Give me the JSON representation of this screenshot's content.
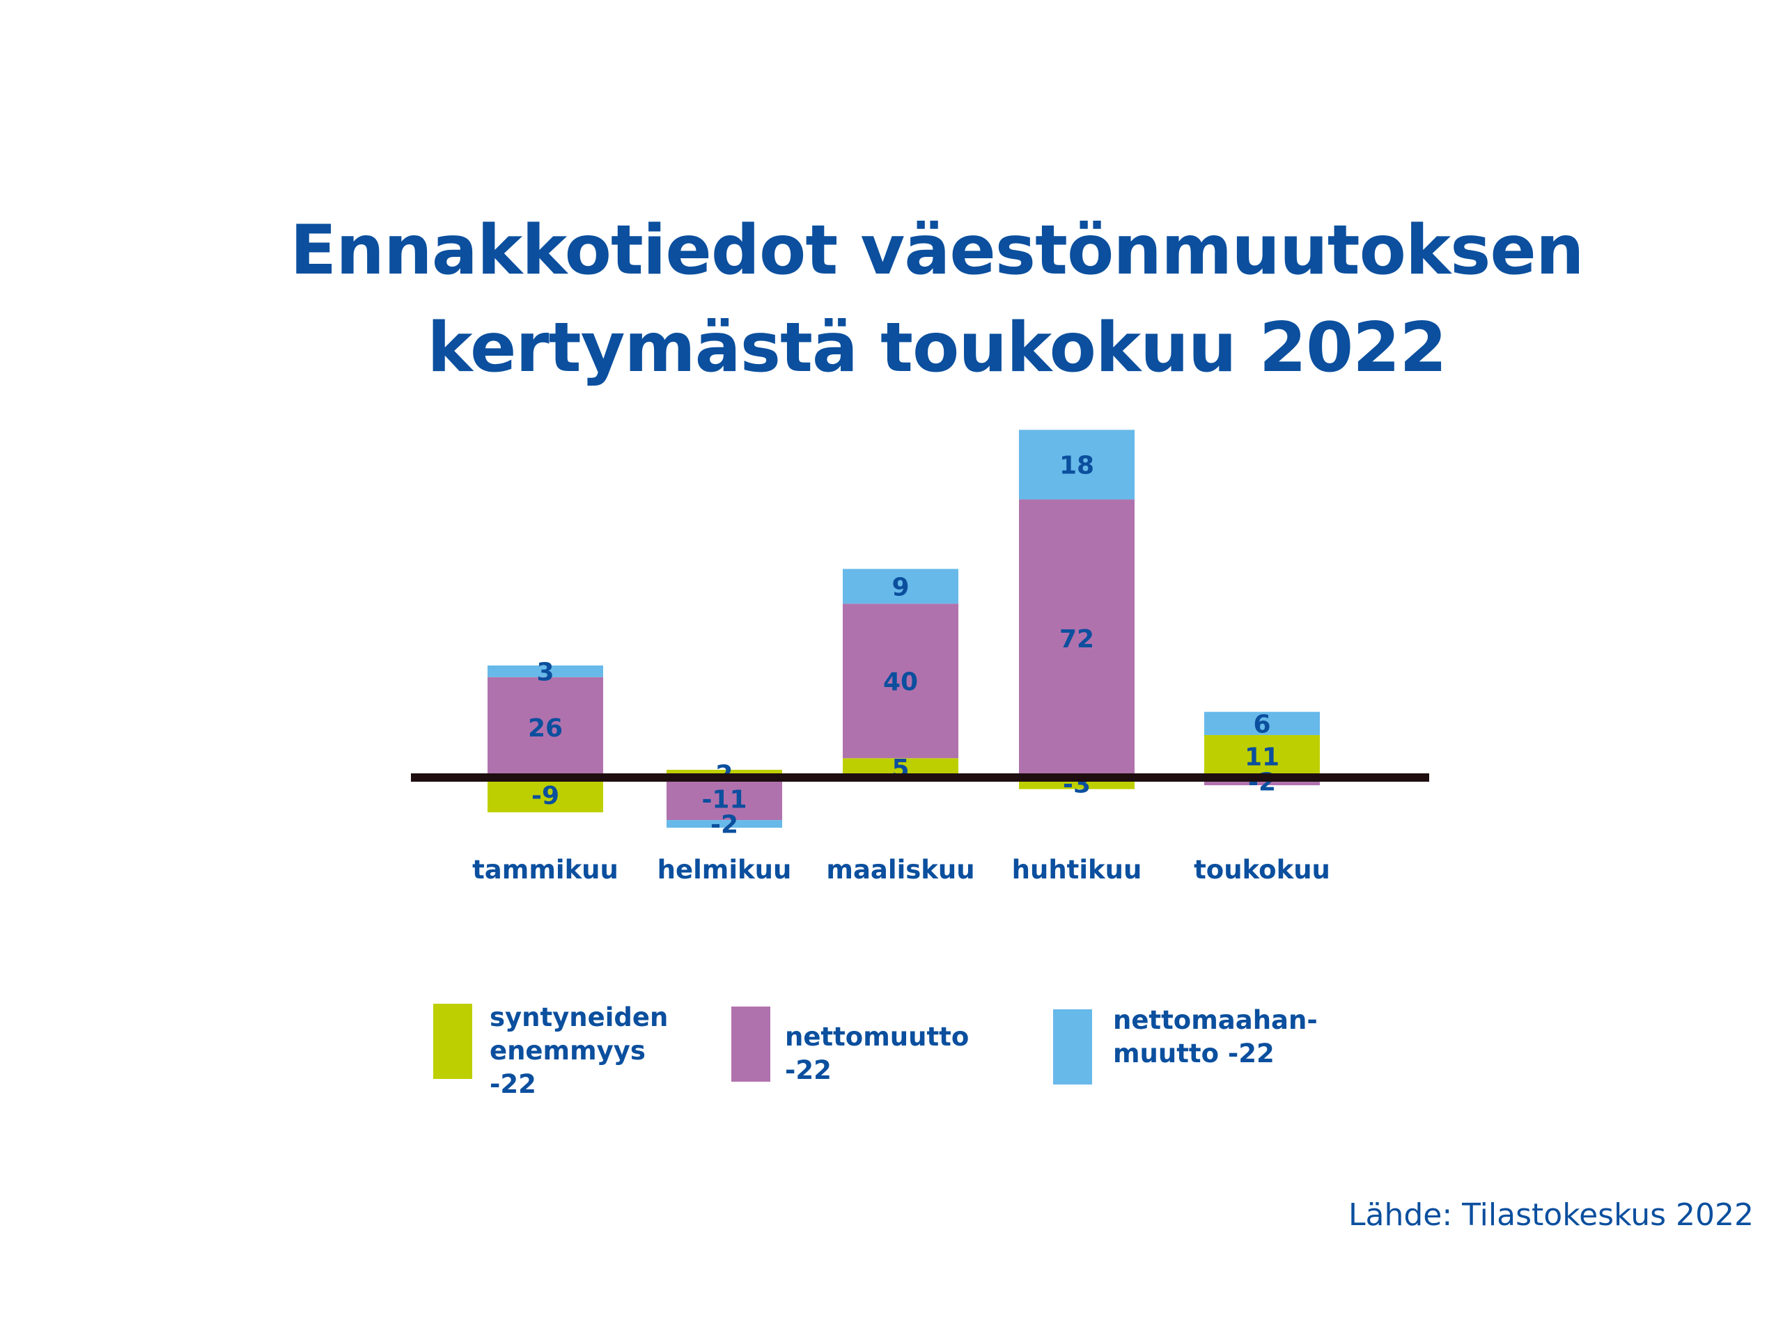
{
  "title_lines": [
    "Ennakkotiedot väestönmuutoksen",
    "kertymästä toukokuu 2022"
  ],
  "source": "Lähde: Tilastokeskus 2022",
  "colors": {
    "text": "#0b4f9e",
    "syntyneiden": "#bdcf00",
    "nettomuutto": "#b072ad",
    "nettomaahanmuutto": "#67b9e9",
    "axis": "#1e0e10"
  },
  "chart_data": {
    "type": "bar",
    "stacked": true,
    "categories": [
      "tammikuu",
      "helmikuu",
      "maaliskuu",
      "huhtikuu",
      "toukokuu"
    ],
    "series": [
      {
        "name": "syntyneiden enemmyys -22",
        "color_key": "syntyneiden",
        "values": [
          -9,
          2,
          5,
          -3,
          11
        ]
      },
      {
        "name": "nettomuutto -22",
        "color_key": "nettomuutto",
        "values": [
          26,
          -11,
          40,
          72,
          -2
        ]
      },
      {
        "name": "nettomaahanmuutto -22",
        "color_key": "nettomaahanmuutto",
        "values": [
          3,
          -2,
          9,
          18,
          6
        ]
      }
    ],
    "legend_placement": "bottom",
    "grid": false
  },
  "legend": [
    {
      "label": "syntyneiden\nenemmyys -22",
      "color_key": "syntyneiden"
    },
    {
      "label": "nettomuutto -22",
      "color_key": "nettomuutto"
    },
    {
      "label": "nettomaahan-\nmuutto -22",
      "color_key": "nettomaahanmuutto"
    }
  ]
}
